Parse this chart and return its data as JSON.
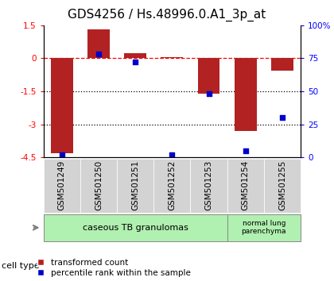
{
  "title": "GDS4256 / Hs.48996.0.A1_3p_at",
  "samples": [
    "GSM501249",
    "GSM501250",
    "GSM501251",
    "GSM501252",
    "GSM501253",
    "GSM501254",
    "GSM501255"
  ],
  "transformed_count": [
    -4.3,
    1.3,
    0.25,
    0.05,
    -1.62,
    -3.3,
    -0.55
  ],
  "percentile_rank": [
    2,
    78,
    72,
    2,
    48,
    5,
    30
  ],
  "ylim_left": [
    -4.5,
    1.5
  ],
  "ylim_right": [
    0,
    100
  ],
  "yticks_left": [
    1.5,
    0,
    -1.5,
    -3,
    -4.5
  ],
  "yticks_right": [
    100,
    75,
    50,
    25,
    0
  ],
  "ytick_labels_left": [
    "1.5",
    "0",
    "-1.5",
    "-3",
    "-4.5"
  ],
  "ytick_labels_right": [
    "100%",
    "75",
    "50",
    "25",
    "0"
  ],
  "dotted_hlines": [
    -1.5,
    -3
  ],
  "dashed_hline": 0,
  "bar_color": "#b22222",
  "dot_color": "#0000cc",
  "group1_label": "caseous TB granulomas",
  "group2_label": "normal lung\nparenchyma",
  "group1_count": 5,
  "group2_count": 2,
  "cell_type_label": "cell type",
  "legend_bar_label": "transformed count",
  "legend_dot_label": "percentile rank within the sample",
  "title_fontsize": 11,
  "tick_fontsize": 7.5,
  "bar_width": 0.6,
  "bg_gray": "#d3d3d3",
  "bg_green": "#b0f0b0"
}
